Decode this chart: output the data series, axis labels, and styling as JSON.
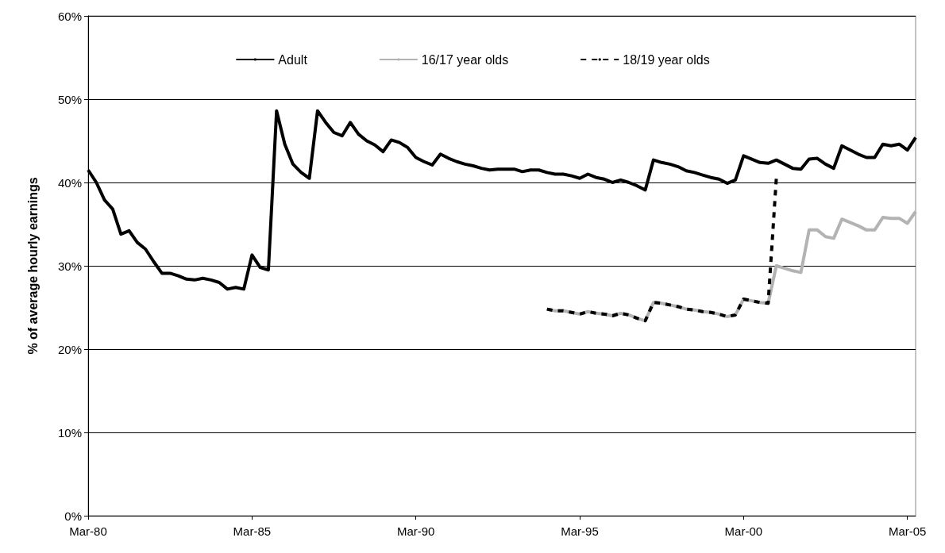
{
  "chart_data": {
    "type": "line",
    "ylabel": "% of average hourly earnings",
    "categories": [
      "Mar-80",
      null,
      null,
      null,
      null,
      null,
      null,
      null,
      null,
      null,
      null,
      null,
      null,
      null,
      null,
      null,
      null,
      null,
      null,
      null,
      "Mar-85",
      null,
      null,
      null,
      null,
      null,
      null,
      null,
      null,
      null,
      null,
      null,
      null,
      null,
      null,
      null,
      null,
      null,
      null,
      null,
      "Mar-90",
      null,
      null,
      null,
      null,
      null,
      null,
      null,
      null,
      null,
      null,
      null,
      null,
      null,
      null,
      null,
      null,
      null,
      null,
      null,
      "Mar-95",
      null,
      null,
      null,
      null,
      null,
      null,
      null,
      null,
      null,
      null,
      null,
      null,
      null,
      null,
      null,
      null,
      null,
      null,
      null,
      "Mar-00",
      null,
      null,
      null,
      null,
      null,
      null,
      null,
      null,
      null,
      null,
      null,
      null,
      null,
      null,
      null,
      null,
      null,
      null,
      null,
      "Mar-05",
      null
    ],
    "series": [
      {
        "name": "Adult",
        "color": "#000000",
        "line_style": "solid",
        "values": [
          41.5,
          40.0,
          37.9,
          36.8,
          33.8,
          34.2,
          32.8,
          32.0,
          30.5,
          29.1,
          29.1,
          28.8,
          28.4,
          28.3,
          28.5,
          28.3,
          28.0,
          27.2,
          27.4,
          27.2,
          31.3,
          29.8,
          29.5,
          48.6,
          44.6,
          42.2,
          41.2,
          40.5,
          48.6,
          47.2,
          46.0,
          45.6,
          47.2,
          45.8,
          45.0,
          44.5,
          43.7,
          45.1,
          44.8,
          44.2,
          43.0,
          42.5,
          42.1,
          43.4,
          42.9,
          42.5,
          42.2,
          42.0,
          41.7,
          41.5,
          41.6,
          41.6,
          41.6,
          41.3,
          41.5,
          41.5,
          41.2,
          41.0,
          41.0,
          40.8,
          40.5,
          41.0,
          40.6,
          40.4,
          40.0,
          40.3,
          40.0,
          39.6,
          39.1,
          42.7,
          42.4,
          42.2,
          41.9,
          41.4,
          41.2,
          40.9,
          40.6,
          40.4,
          39.9,
          40.3,
          43.2,
          42.8,
          42.4,
          42.3,
          42.7,
          42.2,
          41.7,
          41.6,
          42.8,
          42.9,
          42.2,
          41.7,
          44.4,
          43.9,
          43.4,
          43.0,
          43.0,
          44.6,
          44.4,
          44.6,
          43.9,
          45.4
        ]
      },
      {
        "name": "16/17 year olds",
        "color": "#b3b3b3",
        "line_style": "solid",
        "values": [
          null,
          null,
          null,
          null,
          null,
          null,
          null,
          null,
          null,
          null,
          null,
          null,
          null,
          null,
          null,
          null,
          null,
          null,
          null,
          null,
          null,
          null,
          null,
          null,
          null,
          null,
          null,
          null,
          null,
          null,
          null,
          null,
          null,
          null,
          null,
          null,
          null,
          null,
          null,
          null,
          null,
          null,
          null,
          null,
          null,
          null,
          null,
          null,
          null,
          null,
          null,
          null,
          null,
          null,
          null,
          null,
          24.8,
          24.6,
          24.6,
          24.4,
          24.2,
          24.5,
          24.3,
          24.2,
          24.0,
          24.3,
          24.1,
          23.7,
          23.4,
          25.6,
          25.5,
          25.3,
          25.1,
          24.8,
          24.7,
          24.5,
          24.4,
          24.2,
          23.9,
          24.1,
          26.0,
          25.8,
          25.6,
          25.5,
          30.0,
          29.7,
          29.4,
          29.2,
          34.3,
          34.3,
          33.5,
          33.3,
          35.6,
          35.2,
          34.8,
          34.3,
          34.3,
          35.8,
          35.7,
          35.7,
          35.1,
          36.5
        ]
      },
      {
        "name": "18/19 year olds",
        "color": "#000000",
        "line_style": "dashed",
        "values": [
          null,
          null,
          null,
          null,
          null,
          null,
          null,
          null,
          null,
          null,
          null,
          null,
          null,
          null,
          null,
          null,
          null,
          null,
          null,
          null,
          null,
          null,
          null,
          null,
          null,
          null,
          null,
          null,
          null,
          null,
          null,
          null,
          null,
          null,
          null,
          null,
          null,
          null,
          null,
          null,
          null,
          null,
          null,
          null,
          null,
          null,
          null,
          null,
          null,
          null,
          null,
          null,
          null,
          null,
          null,
          null,
          24.8,
          24.6,
          24.6,
          24.4,
          24.2,
          24.5,
          24.3,
          24.2,
          24.0,
          24.3,
          24.1,
          23.7,
          23.4,
          25.6,
          25.5,
          25.3,
          25.1,
          24.8,
          24.7,
          24.5,
          24.4,
          24.2,
          23.9,
          24.1,
          26.0,
          25.8,
          25.6,
          25.5,
          40.5,
          null,
          null,
          null,
          null,
          null,
          null,
          null,
          null,
          null,
          null,
          null,
          null,
          null,
          null,
          null,
          null,
          null
        ]
      }
    ],
    "ylim": [
      0,
      60
    ],
    "yticks": [
      {
        "value": 0,
        "label": "0%"
      },
      {
        "value": 10,
        "label": "10%"
      },
      {
        "value": 20,
        "label": "20%"
      },
      {
        "value": 30,
        "label": "30%"
      },
      {
        "value": 40,
        "label": "40%"
      },
      {
        "value": 50,
        "label": "50%"
      },
      {
        "value": 60,
        "label": "60%"
      }
    ],
    "grid": "y",
    "legend": "top",
    "marker": "none"
  }
}
